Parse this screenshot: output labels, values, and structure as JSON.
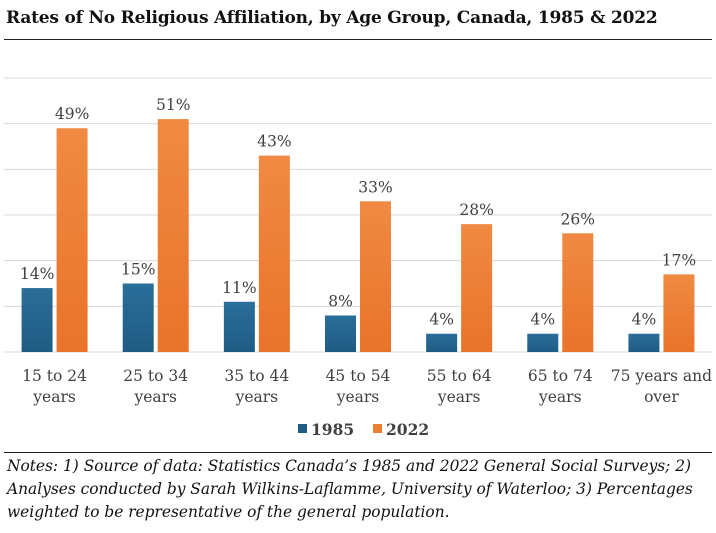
{
  "chart_data": {
    "type": "bar",
    "title": "Rates of No Religious Affiliation, by Age Group, Canada, 1985 & 2022",
    "categories": [
      [
        "15 to 24",
        "years"
      ],
      [
        "25 to 34",
        "years"
      ],
      [
        "35 to 44",
        "years"
      ],
      [
        "45 to 54",
        "years"
      ],
      [
        "55 to 64",
        "years"
      ],
      [
        "65 to 74",
        "years"
      ],
      [
        "75 years and",
        "over"
      ]
    ],
    "series": [
      {
        "name": "1985",
        "color": "#1f5c84",
        "values": [
          14,
          15,
          11,
          8,
          4,
          4,
          4
        ],
        "labels": [
          "14%",
          "15%",
          "11%",
          "8%",
          "4%",
          "4%",
          "4%"
        ]
      },
      {
        "name": "2022",
        "color": "#ed7d31",
        "values": [
          49,
          51,
          43,
          33,
          28,
          26,
          17
        ],
        "labels": [
          "49%",
          "51%",
          "43%",
          "33%",
          "28%",
          "26%",
          "17%"
        ]
      }
    ],
    "ylim": [
      0,
      60
    ],
    "gridlines": [
      10,
      20,
      30,
      40,
      50,
      60
    ],
    "xlabel": "",
    "ylabel": "",
    "legend_position": "bottom"
  },
  "notes": "Notes: 1) Source of data: Statistics Canada’s 1985 and 2022 General Social Surveys; 2) Analyses conducted by Sarah Wilkins-Laflamme, University of Waterloo; 3) Percentages weighted to be representative of the general population."
}
